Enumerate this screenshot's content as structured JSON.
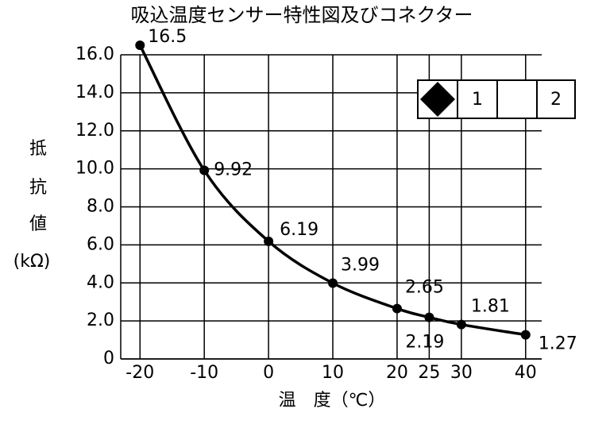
{
  "chart_data": {
    "type": "line",
    "title": "吸込温度センサー特性図及びコネクター",
    "ylabel": [
      "抵",
      "抗",
      "値",
      "(kΩ)"
    ],
    "xlabel": "温　度（℃）",
    "x": [
      -20,
      -10,
      0,
      10,
      20,
      25,
      30,
      40
    ],
    "series": [
      {
        "color": "#000000",
        "values": [
          16.5,
          9.92,
          6.19,
          3.99,
          2.65,
          2.19,
          1.81,
          1.27
        ]
      }
    ],
    "xlim": [
      -23,
      42.5
    ],
    "xticks": [
      -20,
      -10,
      0,
      10,
      20,
      25,
      30,
      40
    ],
    "ylim": [
      0,
      16
    ],
    "yticks": [
      0,
      {
        "value": 2,
        "label": "2.0"
      },
      {
        "value": 4,
        "label": "4.0"
      },
      {
        "value": 6,
        "label": "6.0"
      },
      {
        "value": 8,
        "label": "8.0"
      },
      {
        "value": 10,
        "label": "10.0"
      },
      {
        "value": 12,
        "label": "12.0"
      },
      {
        "value": 14,
        "label": "14.0"
      },
      {
        "value": 16,
        "label": "16.0"
      }
    ],
    "grid": true
  },
  "connector": {
    "pins": [
      "1",
      "2"
    ]
  }
}
